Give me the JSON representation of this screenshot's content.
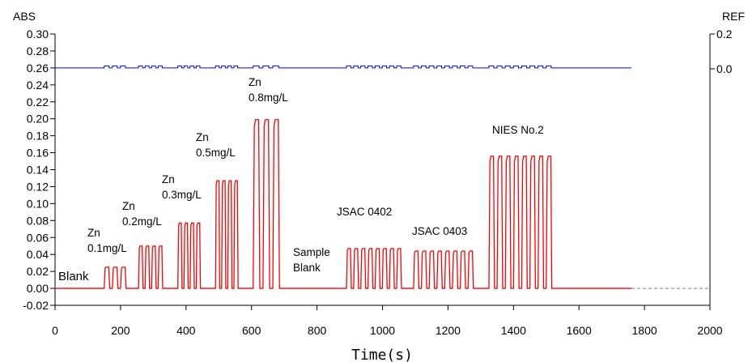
{
  "chart_data": {
    "type": "line",
    "title": "",
    "xlabel": "Time(s)",
    "ylabel": "ABS",
    "y2label": "REF",
    "xlim": [
      0,
      2000
    ],
    "ylim": [
      -0.02,
      0.3
    ],
    "x_ticks": [
      "0",
      "200",
      "400",
      "600",
      "800",
      "1000",
      "1200",
      "1400",
      "1600",
      "1800",
      "2000"
    ],
    "y_ticks": [
      "-0.02",
      "0.00",
      "0.02",
      "0.04",
      "0.06",
      "0.08",
      "0.10",
      "0.12",
      "0.14",
      "0.16",
      "0.18",
      "0.20",
      "0.22",
      "0.24",
      "0.26",
      "0.28",
      "0.30"
    ],
    "y2_ticks": [
      "0.2",
      "0.0"
    ],
    "grid": false,
    "series": [
      {
        "color": "#ff0000",
        "description": "absorbance signal: groups of rectangular peaks",
        "peak_groups": [
          {
            "start": 150,
            "end": 225,
            "count": 3,
            "height": 0.025
          },
          {
            "start": 255,
            "end": 335,
            "count": 4,
            "height": 0.05
          },
          {
            "start": 375,
            "end": 450,
            "count": 4,
            "height": 0.077
          },
          {
            "start": 490,
            "end": 565,
            "count": 4,
            "height": 0.127
          },
          {
            "start": 605,
            "end": 695,
            "count": 3,
            "height": 0.199
          },
          {
            "start": 890,
            "end": 1065,
            "count": 8,
            "height": 0.047
          },
          {
            "start": 1095,
            "end": 1285,
            "count": 8,
            "height": 0.044
          },
          {
            "start": 1325,
            "end": 1525,
            "count": 8,
            "height": 0.156
          }
        ],
        "x_end": 1760,
        "baseline": 0.0
      },
      {
        "color": "#0000ff",
        "description": "reference signal (right axis), near 0.0 with small bumps",
        "level": 0.26,
        "x_end": 1760
      }
    ],
    "baseline_extension": {
      "from": 1760,
      "to": 2000,
      "value": 0.0,
      "style": "dashed",
      "color": "#808080"
    },
    "annotations": [
      {
        "text": "Blank"
      },
      {
        "lines": [
          "Zn",
          "0.1mg/L"
        ]
      },
      {
        "lines": [
          "Zn",
          "0.2mg/L"
        ]
      },
      {
        "lines": [
          "Zn",
          "0.3mg/L"
        ]
      },
      {
        "lines": [
          "Zn",
          "0.5mg/L"
        ]
      },
      {
        "lines": [
          "Zn",
          "0.8mg/L"
        ]
      },
      {
        "lines": [
          "Sample",
          "Blank"
        ]
      },
      {
        "text": "JSAC 0402"
      },
      {
        "text": "JSAC 0403"
      },
      {
        "text": "NIES No.2"
      }
    ]
  }
}
